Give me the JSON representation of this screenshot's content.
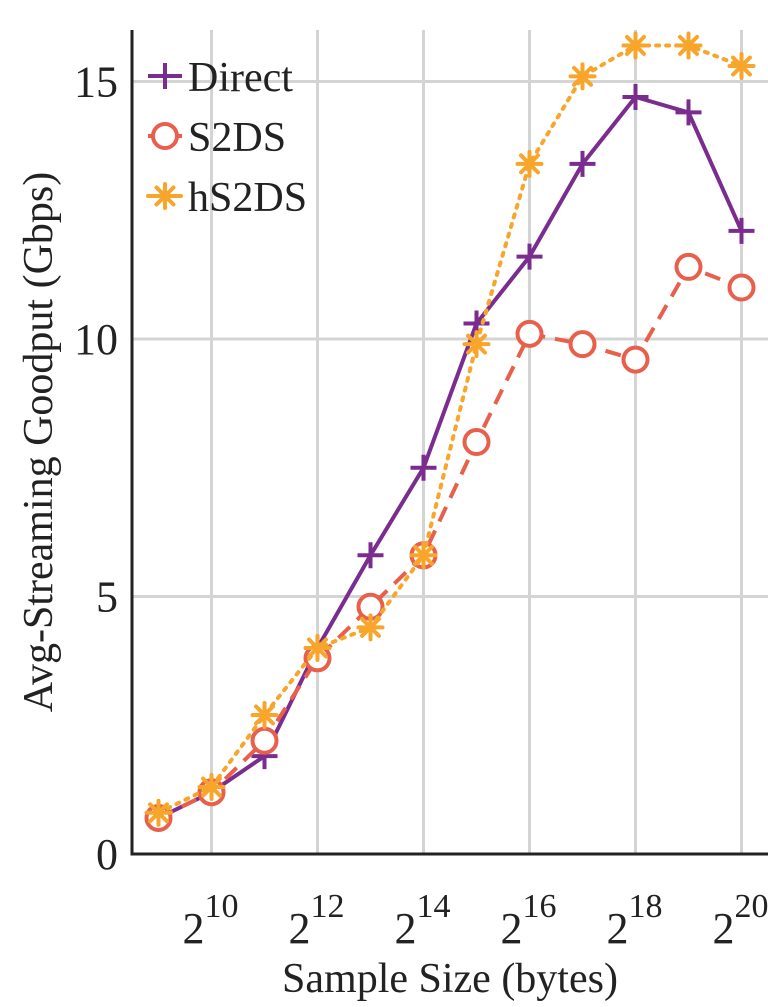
{
  "chart_data": {
    "type": "line",
    "xlabel": "Sample Size (bytes)",
    "ylabel": "Avg-Streaming Goodput (Gbps)",
    "x_scale": "log2",
    "x": [
      512,
      1024,
      2048,
      4096,
      8192,
      16384,
      32768,
      65536,
      131072,
      262144,
      524288,
      1048576
    ],
    "xticks": [
      {
        "value": 1024,
        "base": "2",
        "exp": "10"
      },
      {
        "value": 4096,
        "base": "2",
        "exp": "12"
      },
      {
        "value": 16384,
        "base": "2",
        "exp": "14"
      },
      {
        "value": 65536,
        "base": "2",
        "exp": "16"
      },
      {
        "value": 262144,
        "base": "2",
        "exp": "18"
      },
      {
        "value": 1048576,
        "base": "2",
        "exp": "20"
      }
    ],
    "xlim": [
      362,
      1482910
    ],
    "ylim": [
      0,
      16
    ],
    "yticks": [
      0,
      5,
      10,
      15
    ],
    "grid": true,
    "legend_position": "top-left",
    "series": [
      {
        "name": "Direct",
        "color": "#7b2c8f",
        "marker": "plus",
        "line_style": "solid",
        "values": [
          0.7,
          1.2,
          1.9,
          4.0,
          5.8,
          7.5,
          10.3,
          11.6,
          13.4,
          14.7,
          14.4,
          12.1
        ]
      },
      {
        "name": "S2DS",
        "color": "#e8604c",
        "marker": "circle",
        "line_style": "dashed",
        "values": [
          0.7,
          1.2,
          2.2,
          3.8,
          4.8,
          5.8,
          8.0,
          10.1,
          9.9,
          9.6,
          11.4,
          11.0
        ]
      },
      {
        "name": "hS2DS",
        "color": "#f7a52b",
        "marker": "asterisk",
        "line_style": "dotted",
        "values": [
          0.8,
          1.3,
          2.7,
          4.0,
          4.4,
          5.8,
          9.9,
          13.4,
          15.1,
          15.7,
          15.7,
          15.3
        ]
      }
    ]
  }
}
